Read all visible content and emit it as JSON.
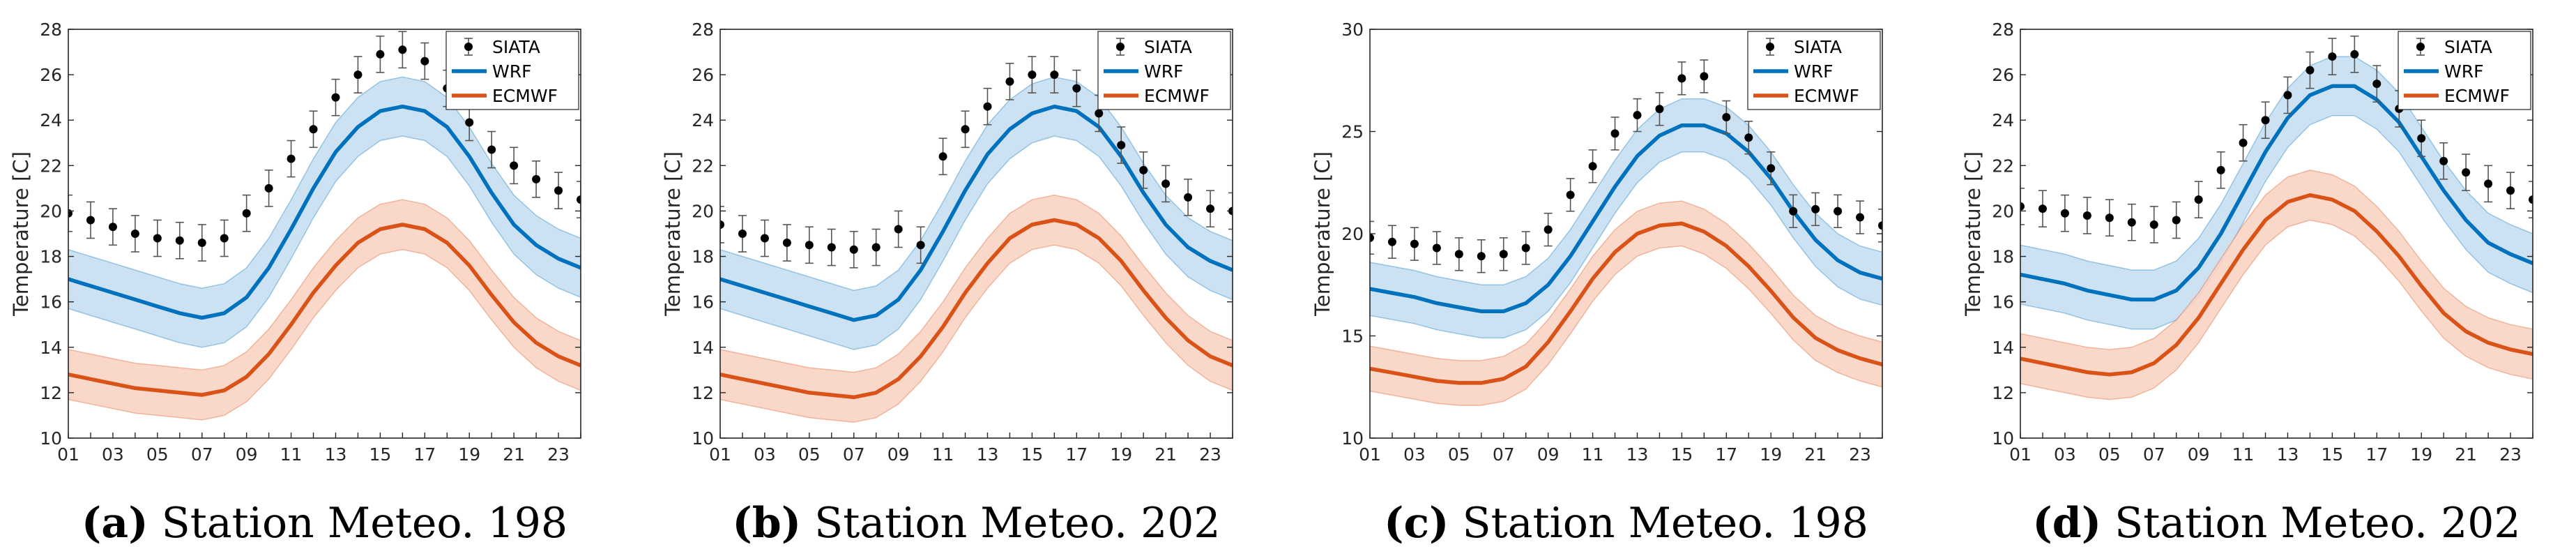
{
  "colors": {
    "wrf": "#0072bd",
    "wrf_band": "#c6dff1",
    "ecmwf": "#d95319",
    "ecmwf_band": "#f8d4c4",
    "obs": "#000000",
    "err": "#555555"
  },
  "chart_data": [
    {
      "type": "line",
      "caption_letter": "(a)",
      "caption_text": " Station Meteo. 198",
      "ylabel": "Temperature [C]",
      "ylim": [
        10,
        28
      ],
      "yticks": [
        10,
        12,
        14,
        16,
        18,
        20,
        22,
        24,
        26,
        28
      ],
      "x": [
        "01",
        "02",
        "03",
        "04",
        "05",
        "06",
        "07",
        "08",
        "09",
        "10",
        "11",
        "12",
        "13",
        "14",
        "15",
        "16",
        "17",
        "18",
        "19",
        "20",
        "21",
        "22",
        "23",
        "24"
      ],
      "xlim": [
        1,
        24
      ],
      "legend": [
        "SIATA",
        "WRF",
        "ECMWF"
      ],
      "legend_position": "top-right",
      "series": [
        {
          "name": "SIATA",
          "kind": "errorbar",
          "error": 0.8,
          "values": [
            19.9,
            19.6,
            19.3,
            19.0,
            18.8,
            18.7,
            18.6,
            18.8,
            19.9,
            21.0,
            22.3,
            23.6,
            25.0,
            26.0,
            26.9,
            27.1,
            26.6,
            25.4,
            23.9,
            22.7,
            22.0,
            21.4,
            20.9,
            20.5
          ]
        },
        {
          "name": "WRF",
          "kind": "line",
          "band": 1.3,
          "values": [
            17.0,
            16.7,
            16.4,
            16.1,
            15.8,
            15.5,
            15.3,
            15.5,
            16.2,
            17.5,
            19.2,
            21.0,
            22.6,
            23.7,
            24.4,
            24.6,
            24.4,
            23.7,
            22.4,
            20.8,
            19.4,
            18.5,
            17.9,
            17.5
          ]
        },
        {
          "name": "ECMWF",
          "kind": "line",
          "band": 1.1,
          "values": [
            12.8,
            12.6,
            12.4,
            12.2,
            12.1,
            12.0,
            11.9,
            12.1,
            12.7,
            13.7,
            15.0,
            16.4,
            17.6,
            18.6,
            19.2,
            19.4,
            19.2,
            18.6,
            17.6,
            16.3,
            15.1,
            14.2,
            13.6,
            13.2
          ]
        }
      ]
    },
    {
      "type": "line",
      "caption_letter": "(b)",
      "caption_text": " Station Meteo. 202",
      "ylabel": "Temperature [C]",
      "ylim": [
        10,
        28
      ],
      "yticks": [
        10,
        12,
        14,
        16,
        18,
        20,
        22,
        24,
        26,
        28
      ],
      "x": [
        "01",
        "02",
        "03",
        "04",
        "05",
        "06",
        "07",
        "08",
        "09",
        "10",
        "11",
        "12",
        "13",
        "14",
        "15",
        "16",
        "17",
        "18",
        "19",
        "20",
        "21",
        "22",
        "23",
        "24"
      ],
      "xlim": [
        1,
        24
      ],
      "legend": [
        "SIATA",
        "WRF",
        "ECMWF"
      ],
      "legend_position": "top-right",
      "series": [
        {
          "name": "SIATA",
          "kind": "errorbar",
          "error": 0.8,
          "values": [
            19.4,
            19.0,
            18.8,
            18.6,
            18.5,
            18.4,
            18.3,
            18.4,
            19.2,
            18.5,
            22.4,
            23.6,
            24.6,
            25.7,
            26.0,
            26.0,
            25.4,
            24.3,
            22.9,
            21.8,
            21.2,
            20.6,
            20.1,
            20.0
          ]
        },
        {
          "name": "WRF",
          "kind": "line",
          "band": 1.3,
          "values": [
            17.0,
            16.7,
            16.4,
            16.1,
            15.8,
            15.5,
            15.2,
            15.4,
            16.1,
            17.4,
            19.1,
            20.9,
            22.5,
            23.6,
            24.3,
            24.6,
            24.4,
            23.7,
            22.4,
            20.8,
            19.4,
            18.4,
            17.8,
            17.4
          ]
        },
        {
          "name": "ECMWF",
          "kind": "line",
          "band": 1.1,
          "values": [
            12.8,
            12.6,
            12.4,
            12.2,
            12.0,
            11.9,
            11.8,
            12.0,
            12.6,
            13.6,
            14.9,
            16.4,
            17.7,
            18.8,
            19.4,
            19.6,
            19.4,
            18.8,
            17.8,
            16.5,
            15.3,
            14.3,
            13.6,
            13.2
          ]
        }
      ]
    },
    {
      "type": "line",
      "caption_letter": "(c)",
      "caption_text": " Station Meteo. 198",
      "ylabel": "Temperature [C]",
      "ylim": [
        10,
        30
      ],
      "yticks": [
        10,
        15,
        20,
        25,
        30
      ],
      "x": [
        "01",
        "02",
        "03",
        "04",
        "05",
        "06",
        "07",
        "08",
        "09",
        "10",
        "11",
        "12",
        "13",
        "14",
        "15",
        "16",
        "17",
        "18",
        "19",
        "20",
        "21",
        "22",
        "23",
        "24"
      ],
      "xlim": [
        1,
        24
      ],
      "legend": [
        "SIATA",
        "WRF",
        "ECMWF"
      ],
      "legend_position": "top-right",
      "series": [
        {
          "name": "SIATA",
          "kind": "errorbar",
          "error": 0.8,
          "values": [
            19.8,
            19.6,
            19.5,
            19.3,
            19.0,
            18.9,
            19.0,
            19.3,
            20.2,
            21.9,
            23.3,
            24.9,
            25.8,
            26.1,
            27.6,
            27.7,
            25.7,
            24.7,
            23.2,
            21.1,
            21.2,
            21.1,
            20.8,
            20.4
          ]
        },
        {
          "name": "WRF",
          "kind": "line",
          "band": 1.3,
          "values": [
            17.3,
            17.1,
            16.9,
            16.6,
            16.4,
            16.2,
            16.2,
            16.6,
            17.5,
            18.9,
            20.6,
            22.3,
            23.8,
            24.8,
            25.3,
            25.3,
            24.9,
            24.0,
            22.7,
            21.1,
            19.7,
            18.7,
            18.1,
            17.8
          ]
        },
        {
          "name": "ECMWF",
          "kind": "line",
          "band": 1.1,
          "values": [
            13.4,
            13.2,
            13.0,
            12.8,
            12.7,
            12.7,
            12.9,
            13.5,
            14.7,
            16.2,
            17.8,
            19.1,
            20.0,
            20.4,
            20.5,
            20.1,
            19.4,
            18.4,
            17.2,
            15.9,
            14.9,
            14.3,
            13.9,
            13.6
          ]
        }
      ]
    },
    {
      "type": "line",
      "caption_letter": "(d)",
      "caption_text": " Station Meteo. 202",
      "ylabel": "Temperature [C]",
      "ylim": [
        10,
        28
      ],
      "yticks": [
        10,
        12,
        14,
        16,
        18,
        20,
        22,
        24,
        26,
        28
      ],
      "x": [
        "01",
        "02",
        "03",
        "04",
        "05",
        "06",
        "07",
        "08",
        "09",
        "10",
        "11",
        "12",
        "13",
        "14",
        "15",
        "16",
        "17",
        "18",
        "19",
        "20",
        "21",
        "22",
        "23",
        "24"
      ],
      "xlim": [
        1,
        24
      ],
      "legend": [
        "SIATA",
        "WRF",
        "ECMWF"
      ],
      "legend_position": "top-right",
      "series": [
        {
          "name": "SIATA",
          "kind": "errorbar",
          "error": 0.8,
          "values": [
            20.2,
            20.1,
            19.9,
            19.8,
            19.7,
            19.5,
            19.4,
            19.6,
            20.5,
            21.8,
            23.0,
            24.0,
            25.1,
            26.2,
            26.8,
            26.9,
            25.6,
            24.5,
            23.2,
            22.2,
            21.7,
            21.2,
            20.9,
            20.5
          ]
        },
        {
          "name": "WRF",
          "kind": "line",
          "band": 1.3,
          "values": [
            17.2,
            17.0,
            16.8,
            16.5,
            16.3,
            16.1,
            16.1,
            16.5,
            17.5,
            19.0,
            20.8,
            22.6,
            24.1,
            25.1,
            25.5,
            25.5,
            24.9,
            23.9,
            22.4,
            20.9,
            19.6,
            18.6,
            18.1,
            17.7
          ]
        },
        {
          "name": "ECMWF",
          "kind": "line",
          "band": 1.1,
          "values": [
            13.5,
            13.3,
            13.1,
            12.9,
            12.8,
            12.9,
            13.3,
            14.1,
            15.3,
            16.8,
            18.3,
            19.6,
            20.4,
            20.7,
            20.5,
            20.0,
            19.1,
            18.0,
            16.7,
            15.5,
            14.7,
            14.2,
            13.9,
            13.7
          ]
        }
      ]
    }
  ]
}
